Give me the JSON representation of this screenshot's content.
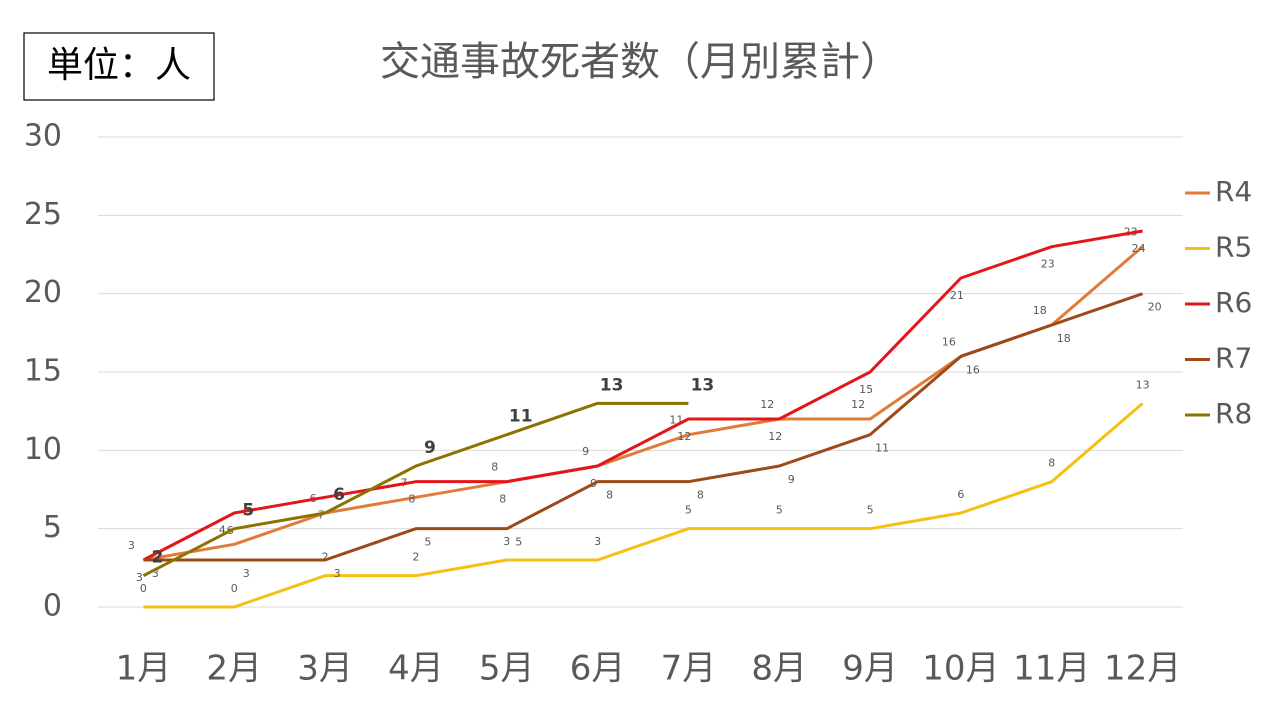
{
  "chart_data": {
    "type": "line",
    "title": "交通事故死者数（月別累計）",
    "unit_label": "単位：人",
    "categories": [
      "1月",
      "2月",
      "3月",
      "4月",
      "5月",
      "6月",
      "7月",
      "8月",
      "9月",
      "10月",
      "11月",
      "12月"
    ],
    "series": [
      {
        "name": "R4",
        "color": "#e07b39",
        "values": [
          3,
          4,
          6,
          7,
          8,
          9,
          11,
          12,
          12,
          16,
          18,
          23
        ]
      },
      {
        "name": "R5",
        "color": "#f5c013",
        "values": [
          0,
          0,
          2,
          2,
          3,
          3,
          5,
          5,
          5,
          6,
          8,
          13
        ]
      },
      {
        "name": "R6",
        "color": "#e3161a",
        "values": [
          3,
          6,
          7,
          8,
          8,
          9,
          12,
          12,
          15,
          21,
          23,
          24
        ]
      },
      {
        "name": "R7",
        "color": "#9c4a1a",
        "values": [
          3,
          3,
          3,
          5,
          5,
          8,
          8,
          9,
          11,
          16,
          18,
          20
        ]
      },
      {
        "name": "R8",
        "color": "#8b7300",
        "values": [
          2,
          5,
          6,
          9,
          11,
          13,
          13,
          null,
          null,
          null,
          null,
          null
        ]
      }
    ],
    "ylim": [
      0,
      30
    ],
    "yticks": [
      0,
      5,
      10,
      15,
      20,
      25,
      30
    ],
    "grid": true,
    "legend": "right"
  }
}
